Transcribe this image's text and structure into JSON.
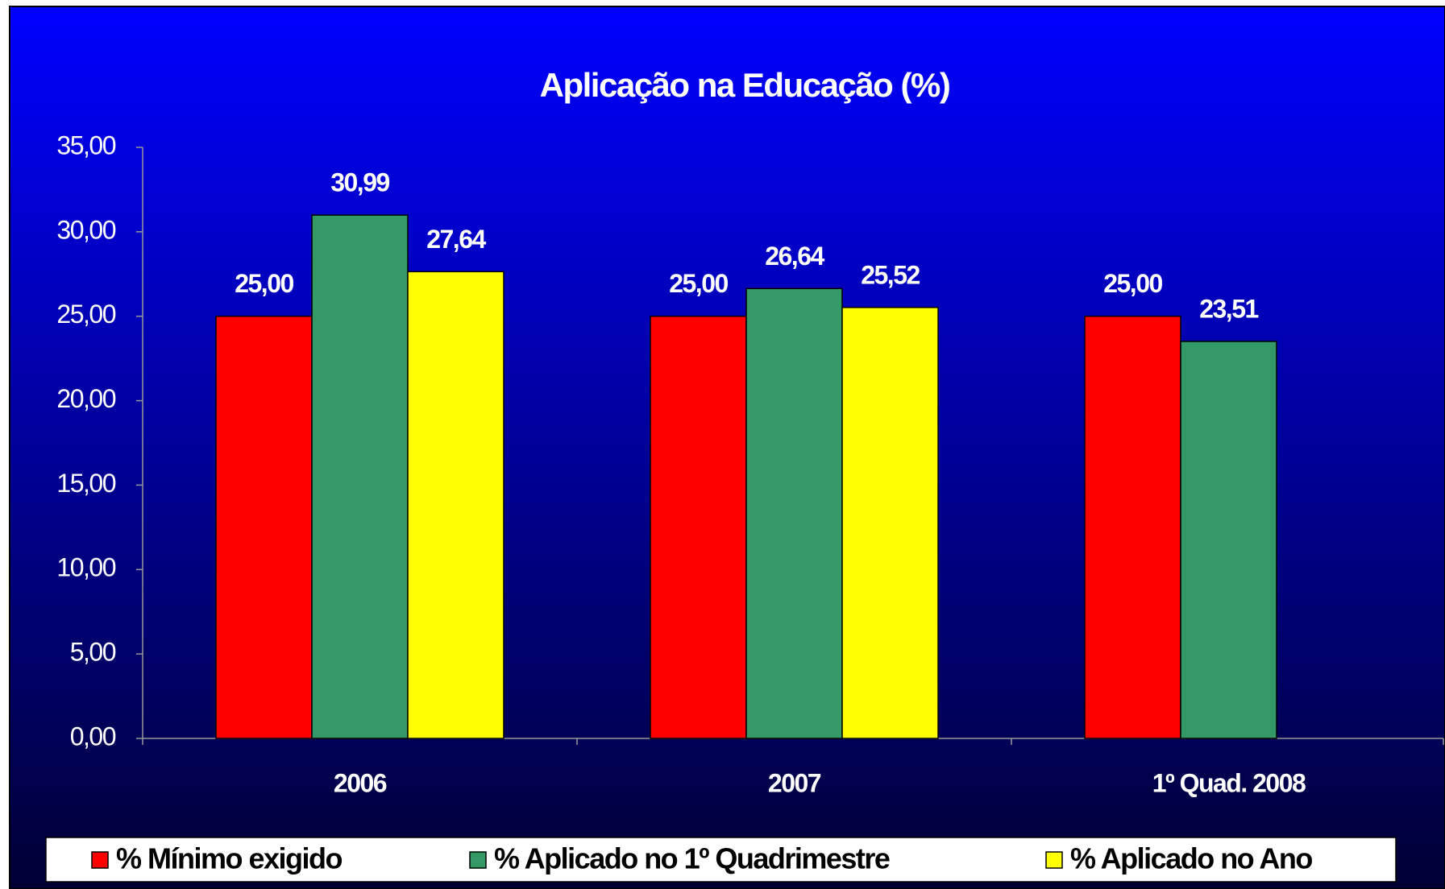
{
  "chart_data": {
    "type": "bar",
    "title": "Aplicação na Educação (%)",
    "categories": [
      "2006",
      "2007",
      "1º Quad. 2008"
    ],
    "series": [
      {
        "name": "% Mínimo exigido",
        "color": "#ff0000",
        "values": [
          25.0,
          25.0,
          25.0
        ],
        "value_labels": [
          "25,00",
          "25,00",
          "25,00"
        ]
      },
      {
        "name": "% Aplicado no 1º Quadrimestre",
        "color": "#339966",
        "values": [
          30.99,
          26.64,
          23.51
        ],
        "value_labels": [
          "30,99",
          "26,64",
          "23,51"
        ]
      },
      {
        "name": "% Aplicado no Ano",
        "color": "#ffff00",
        "values": [
          27.64,
          25.52,
          null
        ],
        "value_labels": [
          "27,64",
          "25,52",
          null
        ]
      }
    ],
    "ylim": [
      0,
      35
    ],
    "yticks": [
      {
        "value": 0,
        "label": "0,00"
      },
      {
        "value": 5,
        "label": "5,00"
      },
      {
        "value": 10,
        "label": "10,00"
      },
      {
        "value": 15,
        "label": "15,00"
      },
      {
        "value": 20,
        "label": "20,00"
      },
      {
        "value": 25,
        "label": "25,00"
      },
      {
        "value": 30,
        "label": "30,00"
      },
      {
        "value": 35,
        "label": "35,00"
      }
    ],
    "legend": "bottom"
  }
}
